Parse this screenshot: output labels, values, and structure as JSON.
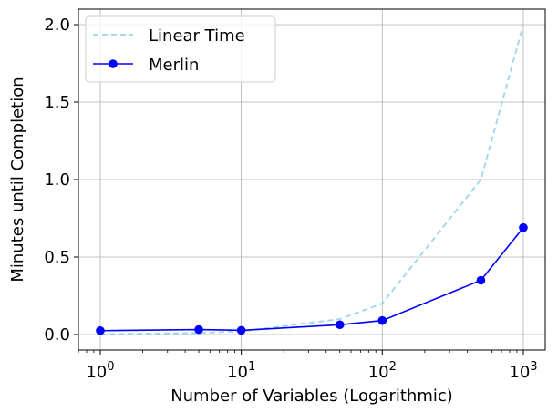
{
  "chart_data": {
    "type": "line",
    "xlabel": "Number of Variables (Logarithmic)",
    "ylabel": "Minutes until Completion",
    "xscale": "log",
    "xlim": [
      0.7,
      1430
    ],
    "ylim": [
      -0.1,
      2.1
    ],
    "x_ticks": [
      1,
      10,
      100,
      1000
    ],
    "x_tick_labels": [
      {
        "base": "10",
        "exp": "0"
      },
      {
        "base": "10",
        "exp": "1"
      },
      {
        "base": "10",
        "exp": "2"
      },
      {
        "base": "10",
        "exp": "3"
      }
    ],
    "y_ticks": [
      0.0,
      0.5,
      1.0,
      1.5,
      2.0
    ],
    "y_tick_labels": [
      "0.0",
      "0.5",
      "1.0",
      "1.5",
      "2.0"
    ],
    "grid": true,
    "legend_position": "top-left",
    "series": [
      {
        "name": "Linear Time",
        "style": "dashed",
        "color": "#9ed4ee",
        "x": [
          1,
          5,
          10,
          50,
          100,
          500,
          1000
        ],
        "y": [
          0.002,
          0.01,
          0.02,
          0.1,
          0.2,
          1.0,
          2.0
        ]
      },
      {
        "name": "Merlin",
        "style": "solid-markers",
        "color": "#0000ff",
        "x": [
          1,
          5,
          10,
          50,
          100,
          500,
          1000
        ],
        "y": [
          0.025,
          0.032,
          0.027,
          0.063,
          0.09,
          0.35,
          0.69
        ]
      }
    ]
  }
}
